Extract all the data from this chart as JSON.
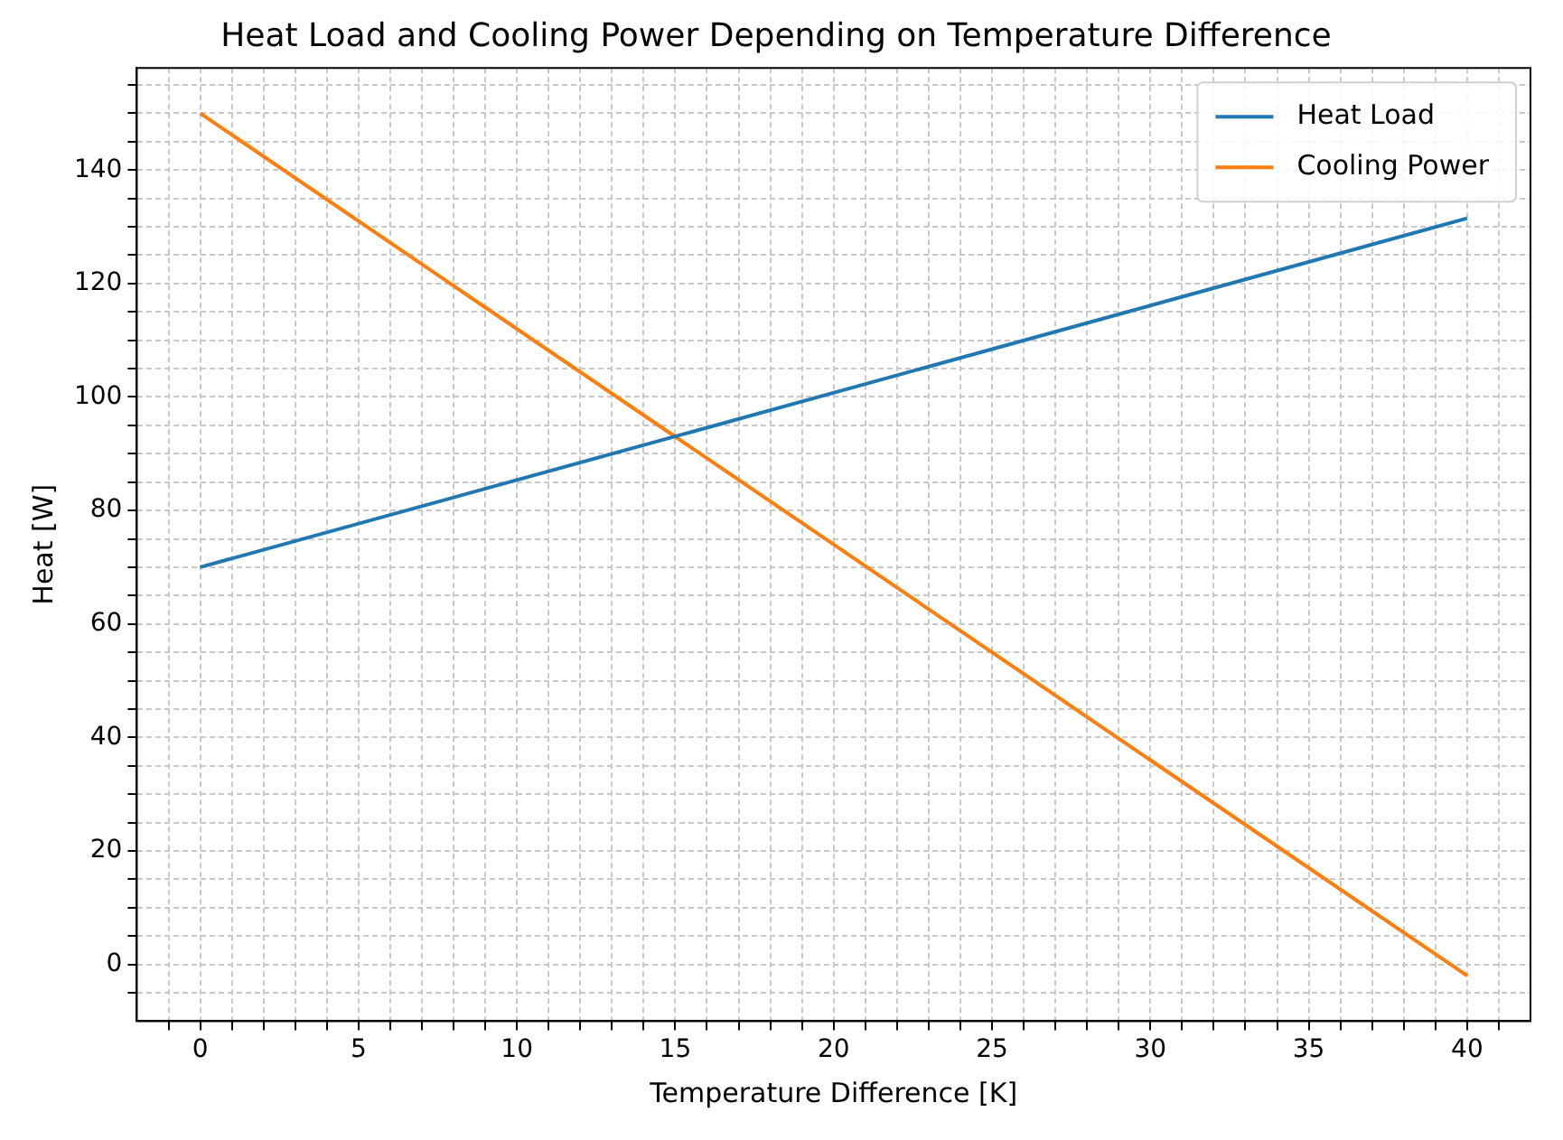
{
  "chart_data": {
    "type": "line",
    "title": "Heat Load and Cooling Power Depending on Temperature Difference",
    "xlabel": "Temperature Difference [K]",
    "ylabel": "Heat [W]",
    "x": [
      0,
      40
    ],
    "series": [
      {
        "name": "Heat Load",
        "color": "#1f77b4",
        "values": [
          70,
          131.5
        ]
      },
      {
        "name": "Cooling Power",
        "color": "#ff7f0e",
        "values": [
          150,
          -2
        ]
      }
    ],
    "xlim": [
      -2,
      42
    ],
    "xticks": [
      {
        "value": -1,
        "label": null
      },
      0,
      {
        "value": 1,
        "label": null
      },
      {
        "value": 2,
        "label": null
      },
      {
        "value": 3,
        "label": null
      },
      {
        "value": 4,
        "label": null
      },
      5,
      {
        "value": 6,
        "label": null
      },
      {
        "value": 7,
        "label": null
      },
      {
        "value": 8,
        "label": null
      },
      {
        "value": 9,
        "label": null
      },
      10,
      {
        "value": 11,
        "label": null
      },
      {
        "value": 12,
        "label": null
      },
      {
        "value": 13,
        "label": null
      },
      {
        "value": 14,
        "label": null
      },
      15,
      {
        "value": 16,
        "label": null
      },
      {
        "value": 17,
        "label": null
      },
      {
        "value": 18,
        "label": null
      },
      {
        "value": 19,
        "label": null
      },
      20,
      {
        "value": 21,
        "label": null
      },
      {
        "value": 22,
        "label": null
      },
      {
        "value": 23,
        "label": null
      },
      {
        "value": 24,
        "label": null
      },
      25,
      {
        "value": 26,
        "label": null
      },
      {
        "value": 27,
        "label": null
      },
      {
        "value": 28,
        "label": null
      },
      {
        "value": 29,
        "label": null
      },
      30,
      {
        "value": 31,
        "label": null
      },
      {
        "value": 32,
        "label": null
      },
      {
        "value": 33,
        "label": null
      },
      {
        "value": 34,
        "label": null
      },
      35,
      {
        "value": 36,
        "label": null
      },
      {
        "value": 37,
        "label": null
      },
      {
        "value": 38,
        "label": null
      },
      {
        "value": 39,
        "label": null
      },
      40,
      {
        "value": 41,
        "label": null
      }
    ],
    "ylim": [
      -10,
      158
    ],
    "yticks": [
      {
        "value": -5,
        "label": null
      },
      0,
      {
        "value": 5,
        "label": null
      },
      {
        "value": 10,
        "label": null
      },
      {
        "value": 15,
        "label": null
      },
      20,
      {
        "value": 25,
        "label": null
      },
      {
        "value": 30,
        "label": null
      },
      {
        "value": 35,
        "label": null
      },
      40,
      {
        "value": 45,
        "label": null
      },
      {
        "value": 50,
        "label": null
      },
      {
        "value": 55,
        "label": null
      },
      60,
      {
        "value": 65,
        "label": null
      },
      {
        "value": 70,
        "label": null
      },
      {
        "value": 75,
        "label": null
      },
      80,
      {
        "value": 85,
        "label": null
      },
      {
        "value": 90,
        "label": null
      },
      {
        "value": 95,
        "label": null
      },
      100,
      {
        "value": 105,
        "label": null
      },
      {
        "value": 110,
        "label": null
      },
      {
        "value": 115,
        "label": null
      },
      120,
      {
        "value": 125,
        "label": null
      },
      {
        "value": 130,
        "label": null
      },
      {
        "value": 135,
        "label": null
      },
      140,
      {
        "value": 145,
        "label": null
      },
      {
        "value": 150,
        "label": null
      },
      {
        "value": 155,
        "label": null
      }
    ],
    "grid": true,
    "legend": "top right",
    "marker": "none",
    "line_style": "solid"
  }
}
